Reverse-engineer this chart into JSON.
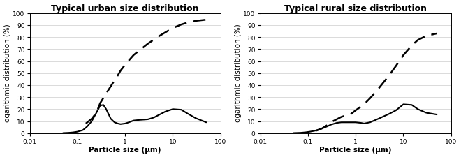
{
  "title_urban": "Typical urban size distribution",
  "title_rural": "Typical rural size distribution",
  "xlabel": "Particle size (μm)",
  "ylabel": "logarithmic distribution (%)",
  "xlim": [
    0.01,
    100
  ],
  "ylim": [
    0,
    100
  ],
  "yticks": [
    0,
    10,
    20,
    30,
    40,
    50,
    60,
    70,
    80,
    90,
    100
  ],
  "xticks": [
    0.01,
    0.1,
    1,
    10,
    100
  ],
  "xticklabels": [
    "0,01",
    "0,1",
    "1",
    "10",
    "100"
  ],
  "line_color": "#000000",
  "background_color": "#ffffff",
  "urban_solid_x": [
    0.05,
    0.065,
    0.08,
    0.1,
    0.13,
    0.16,
    0.2,
    0.25,
    0.3,
    0.35,
    0.4,
    0.5,
    0.6,
    0.7,
    0.8,
    1.0,
    1.2,
    1.5,
    2.0,
    3.0,
    4.0,
    5.0,
    7.0,
    10.0,
    15.0,
    20.0,
    30.0,
    50.0
  ],
  "urban_solid_y": [
    0.1,
    0.3,
    0.6,
    1.2,
    2.5,
    5.5,
    10.0,
    17.0,
    23.0,
    23.5,
    20.0,
    12.0,
    9.0,
    8.0,
    7.5,
    8.0,
    9.0,
    10.5,
    11.0,
    11.5,
    13.0,
    15.0,
    18.0,
    20.0,
    19.5,
    16.5,
    12.5,
    9.0
  ],
  "urban_dashed_x": [
    0.15,
    0.2,
    0.25,
    0.3,
    0.4,
    0.5,
    0.6,
    0.7,
    0.8,
    1.0,
    1.5,
    2.0,
    3.0,
    5.0,
    7.0,
    10.0,
    15.0,
    20.0,
    30.0,
    50.0
  ],
  "urban_dashed_y": [
    8.0,
    12.0,
    17.0,
    25.0,
    33.0,
    39.0,
    44.0,
    48.0,
    52.0,
    57.0,
    65.0,
    69.0,
    74.5,
    80.5,
    84.0,
    87.5,
    90.5,
    92.0,
    93.5,
    94.5
  ],
  "rural_solid_x": [
    0.05,
    0.07,
    0.09,
    0.11,
    0.14,
    0.17,
    0.2,
    0.25,
    0.3,
    0.4,
    0.5,
    0.6,
    0.7,
    0.8,
    1.0,
    1.3,
    1.5,
    2.0,
    3.0,
    5.0,
    7.0,
    10.0,
    15.0,
    20.0,
    30.0,
    50.0
  ],
  "rural_solid_y": [
    0.1,
    0.3,
    0.7,
    1.2,
    2.0,
    3.0,
    4.0,
    5.5,
    7.0,
    8.5,
    9.0,
    9.0,
    9.0,
    9.0,
    9.0,
    8.5,
    8.0,
    9.0,
    12.0,
    16.0,
    19.0,
    24.0,
    23.5,
    20.0,
    17.0,
    15.5
  ],
  "rural_dashed_x": [
    0.15,
    0.2,
    0.25,
    0.3,
    0.4,
    0.5,
    0.6,
    0.7,
    0.8,
    1.0,
    1.5,
    2.0,
    3.0,
    5.0,
    7.0,
    10.0,
    15.0,
    20.0,
    30.0,
    50.0
  ],
  "rural_dashed_y": [
    2.0,
    4.0,
    6.5,
    9.0,
    11.5,
    13.5,
    14.5,
    15.0,
    16.0,
    19.0,
    24.0,
    29.0,
    37.0,
    48.0,
    56.0,
    65.0,
    73.0,
    77.5,
    81.0,
    83.0
  ],
  "solid_linewidth": 1.5,
  "dashed_linewidth": 1.8,
  "title_fontsize": 9,
  "axis_label_fontsize": 7.5,
  "tick_fontsize": 6.5
}
